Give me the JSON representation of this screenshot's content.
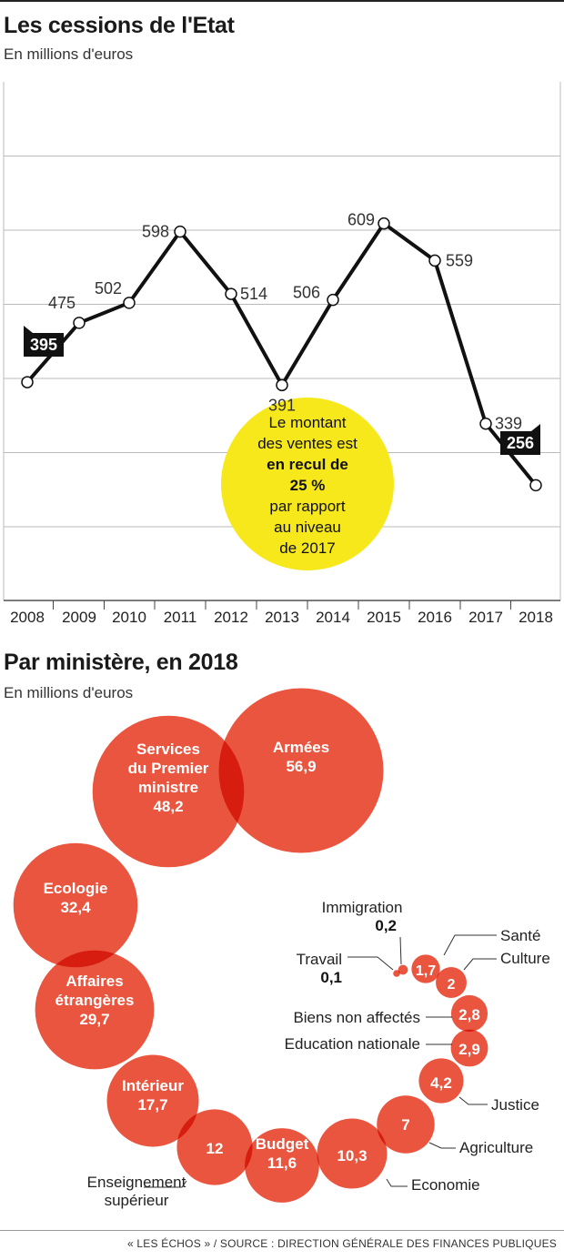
{
  "header": {
    "title": "Les cessions de l'Etat",
    "subtitle": "En millions d'euros"
  },
  "callout": {
    "line1": "Le montant",
    "line2": "des ventes est",
    "line3": "en recul de",
    "line4": "25 %",
    "line5": "par rapport",
    "line6": "au niveau",
    "line7": "de 2017",
    "color": "#f7e81c"
  },
  "section2": {
    "title": "Par ministère, en 2018",
    "subtitle": "En millions d'euros"
  },
  "footer": "« LES ÉCHOS » / SOURCE : DIRECTION GÉNÉRALE DES FINANCES PUBLIQUES",
  "colors": {
    "bubble": "#e8432a",
    "line": "#111111",
    "grid": "#bbbbbb"
  },
  "chart_data": [
    {
      "type": "line",
      "x": [
        "2008",
        "2009",
        "2010",
        "2011",
        "2012",
        "2013",
        "2014",
        "2015",
        "2016",
        "2017",
        "2018"
      ],
      "values": [
        395,
        475,
        502,
        598,
        514,
        391,
        506,
        609,
        559,
        339,
        256
      ],
      "highlighted": [
        "2008",
        "2018"
      ],
      "ylim": [
        100,
        700
      ],
      "grid": true
    },
    {
      "type": "bubble",
      "items": [
        {
          "name": "Armées",
          "value": "56,9"
        },
        {
          "name": "Services du Premier ministre",
          "lines": [
            "Services",
            "du Premier",
            "ministre"
          ],
          "value": "48,2"
        },
        {
          "name": "Ecologie",
          "value": "32,4"
        },
        {
          "name": "Affaires étrangères",
          "lines": [
            "Affaires",
            "étrangères"
          ],
          "value": "29,7"
        },
        {
          "name": "Intérieur",
          "value": "17,7"
        },
        {
          "name": "Enseignement supérieur",
          "lines": [
            "Enseignement",
            "supérieur"
          ],
          "value": "12"
        },
        {
          "name": "Budget",
          "value": "11,6"
        },
        {
          "name": "Economie",
          "value": "10,3"
        },
        {
          "name": "Agriculture",
          "value": "7"
        },
        {
          "name": "Justice",
          "value": "4,2"
        },
        {
          "name": "Education nationale",
          "value": "2,9"
        },
        {
          "name": "Biens non affectés",
          "value": "2,8"
        },
        {
          "name": "Culture",
          "value": "2"
        },
        {
          "name": "Santé",
          "value": "1,7"
        },
        {
          "name": "Immigration",
          "value": "0,2"
        },
        {
          "name": "Travail",
          "value": "0,1"
        }
      ]
    }
  ]
}
